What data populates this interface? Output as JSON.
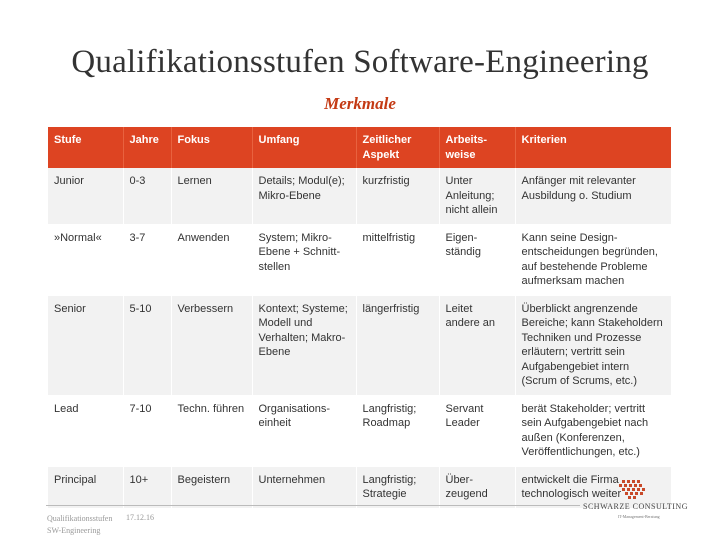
{
  "title": "Qualifikationsstufen Software-Engineering",
  "subtitle": "Merkmale",
  "table": {
    "headers": [
      "Stufe",
      "Jahre",
      "Fokus",
      "Umfang",
      "Zeitlicher Aspekt",
      "Arbeits-weise",
      "Kriterien"
    ],
    "rows": [
      [
        "Junior",
        "0-3",
        "Lernen",
        "Details; Modul(e); Mikro-Ebene",
        "kurzfristig",
        "Unter Anleitung; nicht allein",
        "Anfänger mit relevanter Ausbildung o. Studium"
      ],
      [
        "»Normal«",
        "3-7",
        "Anwenden",
        "System; Mikro-Ebene + Schnitt-stellen",
        "mittelfristig",
        "Eigen-ständig",
        "Kann seine Design-entscheidungen begründen, auf bestehende Probleme aufmerksam machen"
      ],
      [
        "Senior",
        "5-10",
        "Verbessern",
        "Kontext; Systeme; Modell und Verhalten; Makro-Ebene",
        "längerfristig",
        "Leitet andere an",
        "Überblickt angrenzende Bereiche; kann Stakeholdern Techniken und Prozesse erläutern; vertritt sein Aufgabengebiet intern (Scrum of Scrums, etc.)"
      ],
      [
        "Lead",
        "7-10",
        "Techn. führen",
        "Organisations-einheit",
        "Langfristig; Roadmap",
        "Servant Leader",
        "berät Stakeholder; vertritt sein Aufgabengebiet nach außen (Konferenzen, Veröffentlichungen, etc.)"
      ],
      [
        "Principal",
        "10+",
        "Begeistern",
        "Unternehmen",
        "Langfristig; Strategie",
        "Über-zeugend",
        "entwickelt die Firma technologisch weiter"
      ]
    ]
  },
  "footer": {
    "line1": "Qualifikationsstufen",
    "line2": "SW-Engineering",
    "date": "17.12.16"
  },
  "logo": {
    "name": "SCHWARZE CONSULTING",
    "tagline": "IT-Management-Beratung",
    "color": "#c84a2a"
  },
  "colors": {
    "header_bg": "#dd4422",
    "subtitle": "#c43a14",
    "row_alt": "#f2f2f2"
  }
}
